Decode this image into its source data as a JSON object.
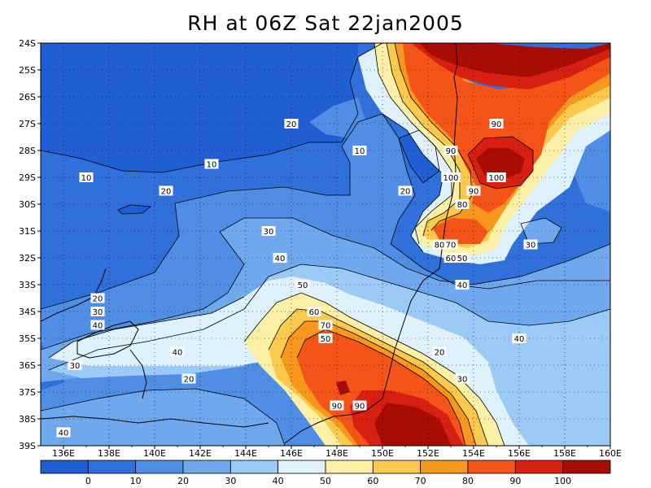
{
  "title": "RH at 06Z Sat 22jan2005",
  "lat_labels": [
    "24S",
    "25S",
    "26S",
    "27S",
    "28S",
    "29S",
    "30S",
    "31S",
    "32S",
    "33S",
    "34S",
    "35S",
    "36S",
    "37S",
    "38S",
    "39S"
  ],
  "lon_labels": [
    "136E",
    "138E",
    "140E",
    "142E",
    "144E",
    "146E",
    "148E",
    "150E",
    "152E",
    "154E",
    "156E",
    "158E",
    "160E"
  ],
  "colorbar": {
    "colors": [
      "#1f5fd3",
      "#2f70db",
      "#4f8ee4",
      "#6fa8ec",
      "#9ccaf6",
      "#dff2fb",
      "#fbf0a6",
      "#fbc94c",
      "#f8971e",
      "#f45418",
      "#d82012",
      "#a70d05"
    ],
    "labels": [
      "0",
      "10",
      "20",
      "30",
      "40",
      "50",
      "60",
      "70",
      "80",
      "90",
      "100"
    ]
  },
  "contour_labels": [
    {
      "text": "90",
      "near": "27S 155E"
    },
    {
      "text": "20",
      "near": "27S 146E"
    },
    {
      "text": "10",
      "near": "28S 149E"
    },
    {
      "text": "90",
      "near": "28S 153E"
    },
    {
      "text": "10",
      "near": "28.5S 142.5E"
    },
    {
      "text": "10",
      "near": "29S 137E"
    },
    {
      "text": "100",
      "near": "29S 153E"
    },
    {
      "text": "100",
      "near": "29S 155E"
    },
    {
      "text": "90",
      "near": "29.5S 154E"
    },
    {
      "text": "20",
      "near": "29.5S 151E"
    },
    {
      "text": "20",
      "near": "29.5S 140.5E"
    },
    {
      "text": "80",
      "near": "30S 153.5E"
    },
    {
      "text": "30",
      "near": "31S 145E"
    },
    {
      "text": "80",
      "near": "31.5S 152.5E"
    },
    {
      "text": "30",
      "near": "31.5S 156.5E"
    },
    {
      "text": "70",
      "near": "31.5S 153E"
    },
    {
      "text": "60",
      "near": "32S 153E"
    },
    {
      "text": "40",
      "near": "32S 145.5E"
    },
    {
      "text": "50",
      "near": "32S 153.5E"
    },
    {
      "text": "40",
      "near": "33S 153.5E"
    },
    {
      "text": "50",
      "near": "33S 146.5E"
    },
    {
      "text": "20",
      "near": "33.5S 137.5E"
    },
    {
      "text": "60",
      "near": "34S 147E"
    },
    {
      "text": "30",
      "near": "34S 137.5E"
    },
    {
      "text": "70",
      "near": "34.5S 147.5E"
    },
    {
      "text": "40",
      "near": "34.5S 137.5E"
    },
    {
      "text": "40",
      "near": "35S 156E"
    },
    {
      "text": "50",
      "near": "35S 147.5E"
    },
    {
      "text": "20",
      "near": "35.5S 152.5E"
    },
    {
      "text": "40",
      "near": "35.5S 141E"
    },
    {
      "text": "30",
      "near": "36S 136.5E"
    },
    {
      "text": "20",
      "near": "36.5S 141.5E"
    },
    {
      "text": "30",
      "near": "36.5S 153.5E"
    },
    {
      "text": "90",
      "near": "37.5S 148E"
    },
    {
      "text": "90",
      "near": "37.5S 149E"
    },
    {
      "text": "40",
      "near": "38.5S 136E"
    }
  ]
}
